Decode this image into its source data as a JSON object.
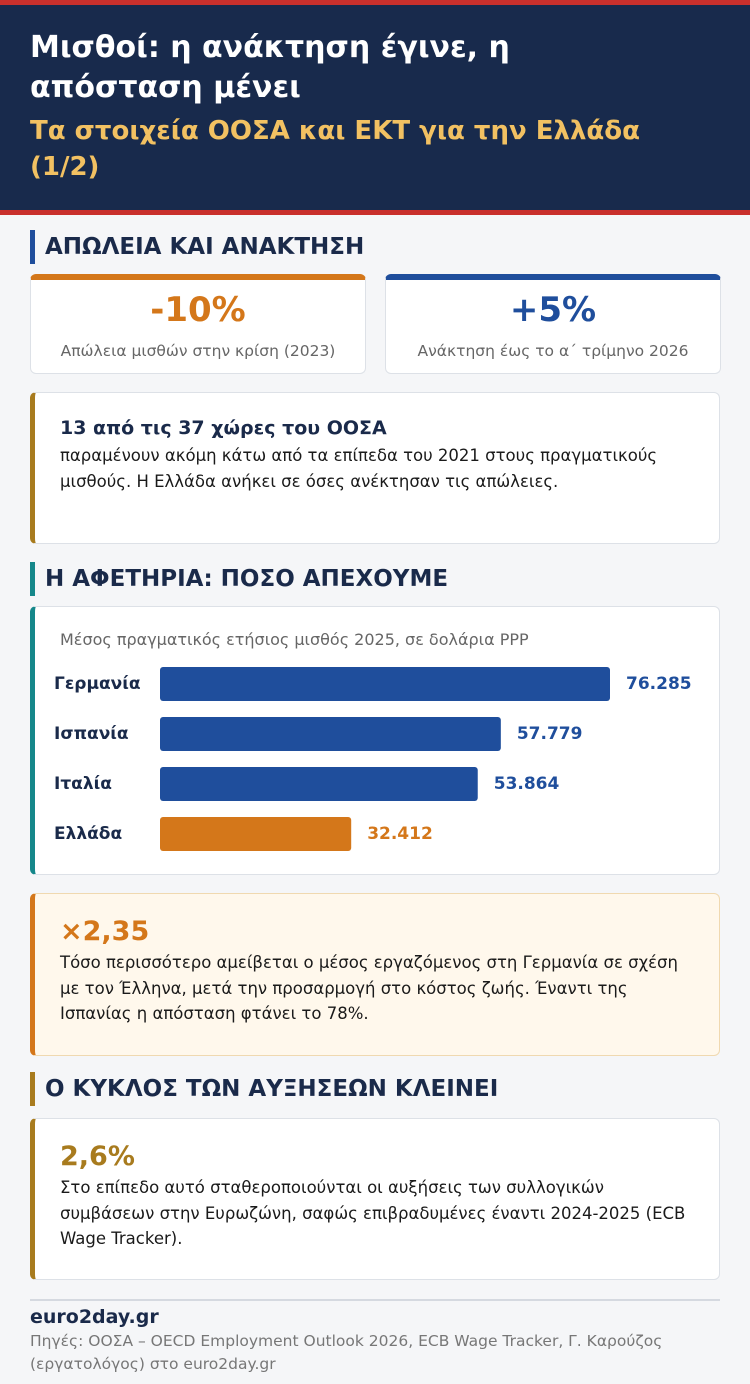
{
  "header": {
    "title": "Μισθοί: η ανάκτηση έγινε, η απόσταση μένει",
    "subtitle": "Τα στοιχεία ΟΟΣΑ και ΕΚΤ για την Ελλάδα (1/2)"
  },
  "sections": [
    {
      "heading": "ΑΠΩΛΕΙΑ ΚΑΙ ΑΝΑΚΤΗΣΗ",
      "stats": [
        {
          "value": "-10%",
          "label": "Απώλεια μισθών στην κρίση (2023)",
          "color": "#d4771a"
        },
        {
          "value": "+5%",
          "label": "Ανάκτηση έως το α΄ τρίμηνο 2026",
          "color": "#1f4e9c"
        }
      ],
      "note": {
        "highlight": "13 από τις 37 χώρες του ΟΟΣΑ",
        "text": "παραμένουν ακόμη κάτω από τα επίπεδα του 2021 στους πραγματικούς μισθούς. Η Ελλάδα ανήκει σε όσες ανέκτησαν τις απώλειες."
      }
    },
    {
      "heading": "Η ΑΦΕΤΗΡΙΑ: ΠΟΣΟ ΑΠΕΧΟΥΜΕ",
      "chart": {
        "type": "bar",
        "caption": "Μέσος πραγματικός ετήσιος μισθός 2025, σε δολάρια PPP",
        "categories": [
          "Γερμανία",
          "Ισπανία",
          "Ιταλία",
          "Ελλάδα"
        ],
        "values": [
          76285,
          57779,
          53864,
          32412
        ],
        "value_labels": [
          "76.285",
          "57.779",
          "53.864",
          "32.412"
        ],
        "colors": [
          "#1f4e9c",
          "#1f4e9c",
          "#1f4e9c",
          "#d4771a"
        ]
      },
      "callout": {
        "highlight": "×2,35",
        "text": "Τόσο περισσότερο αμείβεται ο μέσος εργαζόμενος στη Γερμανία σε σχέση με τον Έλληνα, μετά την προσαρμογή στο κόστος ζωής. Έναντι της Ισπανίας η απόσταση φτάνει το 78%."
      }
    },
    {
      "heading": "Ο ΚΥΚΛΟΣ ΤΩΝ ΑΥΞΗΣΕΩΝ ΚΛΕΙΝΕΙ",
      "note": {
        "highlight": "2,6%",
        "text": "Στο επίπεδο αυτό σταθεροποιούνται οι αυξήσεις των συλλογικών συμβάσεων στην Ευρωζώνη, σαφώς επιβραδυμένες έναντι 2024-2025 (ECB Wage Tracker)."
      }
    }
  ],
  "footer": {
    "brand": "euro2day.gr",
    "sources": "Πηγές: ΟΟΣΑ – OECD Employment Outlook 2026, ECB Wage Tracker, Γ. Καρούζος (εργατολόγος) στο euro2day.gr"
  }
}
